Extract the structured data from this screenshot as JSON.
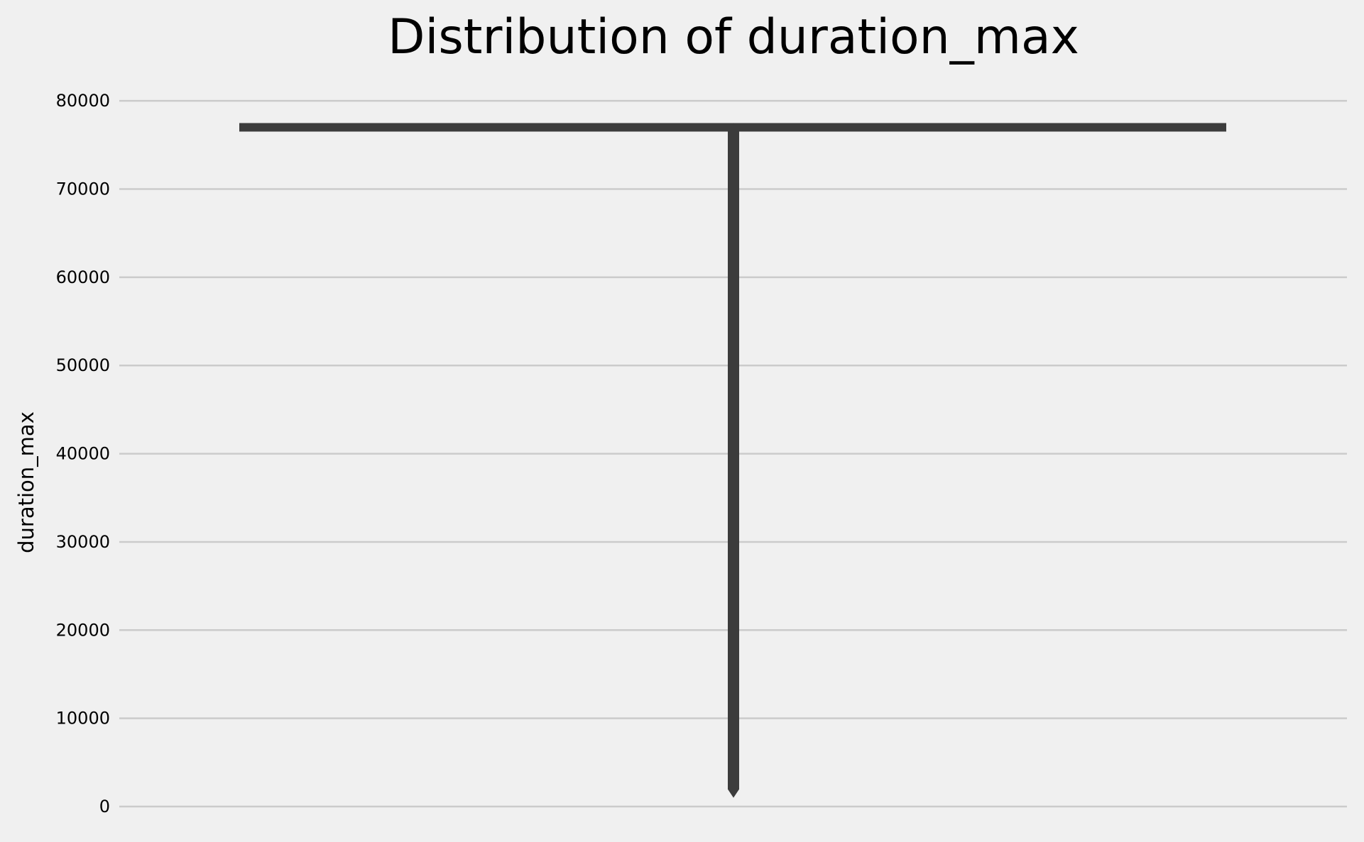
{
  "chart_data": {
    "type": "violin",
    "title": "Distribution of duration_max",
    "xlabel": "",
    "ylabel": "duration_max",
    "ylim": [
      0,
      85000
    ],
    "yticks": [
      0,
      10000,
      20000,
      30000,
      40000,
      50000,
      60000,
      70000,
      80000
    ],
    "grid": true,
    "legend": "none",
    "distribution": {
      "min": 1000,
      "max": 77500,
      "density_peak": 77000
    },
    "colors": {
      "background": "#f0f0f0",
      "grid": "#cbcbcb",
      "violin": "#3c3c3c"
    }
  }
}
